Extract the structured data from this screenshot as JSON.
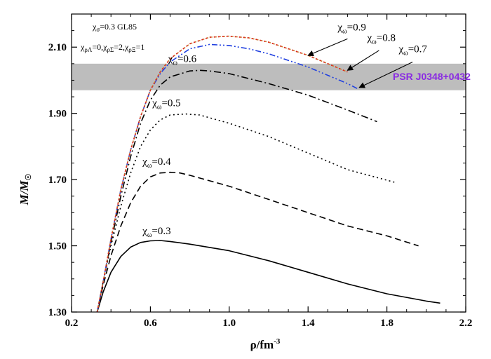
{
  "chart_data": {
    "type": "line",
    "xlabel": "ρ/fm⁻³",
    "ylabel": "M/M☉",
    "xlim": [
      0.2,
      2.2
    ],
    "ylim": [
      1.3,
      2.2
    ],
    "x_ticks": [
      "0.2",
      "0.6",
      "1.0",
      "1.4",
      "1.8",
      "2.2"
    ],
    "y_ticks": [
      "1.30",
      "1.50",
      "1.70",
      "1.90",
      "2.10"
    ],
    "parameters": {
      "line1": "χσ=0.3 GL85",
      "line2": "χρΛ=0,χρΣ=2,χρΞ=1"
    },
    "band": {
      "label": "PSR J0348+0432",
      "ymin": 1.97,
      "ymax": 2.05,
      "color": "#bdbdbd"
    },
    "series": [
      {
        "name": "χω=0.3",
        "color": "#000000",
        "style": "solid",
        "x": [
          0.33,
          0.36,
          0.4,
          0.45,
          0.5,
          0.55,
          0.6,
          0.65,
          0.7,
          0.8,
          1.0,
          1.2,
          1.4,
          1.6,
          1.8,
          2.0,
          2.07
        ],
        "y": [
          1.3,
          1.36,
          1.42,
          1.468,
          1.496,
          1.51,
          1.515,
          1.516,
          1.513,
          1.505,
          1.485,
          1.455,
          1.42,
          1.385,
          1.355,
          1.333,
          1.327
        ]
      },
      {
        "name": "χω=0.4",
        "color": "#000000",
        "style": "dashed",
        "x": [
          0.33,
          0.36,
          0.4,
          0.45,
          0.5,
          0.55,
          0.6,
          0.65,
          0.7,
          0.75,
          0.8,
          1.0,
          1.2,
          1.4,
          1.6,
          1.8,
          1.96
        ],
        "y": [
          1.3,
          1.38,
          1.47,
          1.56,
          1.63,
          1.68,
          1.708,
          1.72,
          1.722,
          1.72,
          1.713,
          1.68,
          1.64,
          1.6,
          1.56,
          1.53,
          1.5
        ]
      },
      {
        "name": "χω=0.5",
        "color": "#000000",
        "style": "dotted",
        "x": [
          0.33,
          0.36,
          0.4,
          0.45,
          0.5,
          0.55,
          0.6,
          0.65,
          0.7,
          0.78,
          0.85,
          1.0,
          1.2,
          1.4,
          1.6,
          1.85
        ],
        "y": [
          1.3,
          1.39,
          1.5,
          1.62,
          1.72,
          1.8,
          1.85,
          1.88,
          1.895,
          1.898,
          1.895,
          1.87,
          1.83,
          1.78,
          1.73,
          1.69
        ]
      },
      {
        "name": "χω=0.6",
        "color": "#000000",
        "style": "dashdot",
        "x": [
          0.33,
          0.36,
          0.4,
          0.45,
          0.5,
          0.55,
          0.6,
          0.65,
          0.7,
          0.8,
          0.85,
          0.9,
          1.0,
          1.2,
          1.4,
          1.6,
          1.75
        ],
        "y": [
          1.3,
          1.39,
          1.51,
          1.65,
          1.77,
          1.87,
          1.94,
          1.985,
          2.01,
          2.028,
          2.03,
          2.028,
          2.02,
          1.99,
          1.955,
          1.91,
          1.875
        ]
      },
      {
        "name": "χω=0.7",
        "color": "#1f3fe0",
        "style": "dashdotdot",
        "x": [
          0.33,
          0.36,
          0.4,
          0.45,
          0.5,
          0.55,
          0.6,
          0.65,
          0.7,
          0.8,
          0.9,
          1.0,
          1.1,
          1.2,
          1.4,
          1.6,
          1.65
        ],
        "y": [
          1.3,
          1.39,
          1.52,
          1.67,
          1.79,
          1.89,
          1.97,
          2.02,
          2.055,
          2.095,
          2.108,
          2.105,
          2.095,
          2.08,
          2.04,
          1.99,
          1.975
        ]
      },
      {
        "name": "χω=0.8",
        "color": "#c87a2b",
        "style": "dashed-short",
        "x": [
          0.33,
          0.36,
          0.4,
          0.45,
          0.5,
          0.55,
          0.6,
          0.65,
          0.7,
          0.8,
          0.9,
          1.0,
          1.1,
          1.2,
          1.4,
          1.6
        ],
        "y": [
          1.3,
          1.39,
          1.52,
          1.67,
          1.79,
          1.89,
          1.97,
          2.025,
          2.065,
          2.11,
          2.13,
          2.133,
          2.128,
          2.115,
          2.075,
          2.025
        ]
      },
      {
        "name": "χω=0.9",
        "color": "#e02020",
        "style": "dotted",
        "x": [
          0.33,
          0.36,
          0.4,
          0.45,
          0.5,
          0.55,
          0.6,
          0.65,
          0.7,
          0.8,
          0.9,
          1.0,
          1.1,
          1.2,
          1.4,
          1.6
        ],
        "y": [
          1.3,
          1.39,
          1.52,
          1.67,
          1.79,
          1.89,
          1.97,
          2.025,
          2.065,
          2.11,
          2.13,
          2.133,
          2.128,
          2.115,
          2.075,
          2.025
        ]
      }
    ],
    "curve_labels": [
      {
        "sub": "ω",
        "value": "=0.3",
        "x": 0.56,
        "y": 1.535
      },
      {
        "sub": "ω",
        "value": "=0.4",
        "x": 0.56,
        "y": 1.745
      },
      {
        "sub": "ω",
        "value": "=0.5",
        "x": 0.61,
        "y": 1.922
      },
      {
        "sub": "ω",
        "value": "=0.6",
        "x": 0.69,
        "y": 2.055
      },
      {
        "sub": "ω",
        "value": "=0.9",
        "x": 1.55,
        "y": 2.15
      },
      {
        "sub": "ω",
        "value": "=0.8",
        "x": 1.7,
        "y": 2.118
      },
      {
        "sub": "ω",
        "value": "=0.7",
        "x": 1.86,
        "y": 2.085
      }
    ],
    "arrows": [
      {
        "from": [
          1.6,
          2.125
        ],
        "to": [
          1.4,
          2.075
        ]
      },
      {
        "from": [
          1.76,
          2.09
        ],
        "to": [
          1.6,
          2.03
        ]
      },
      {
        "from": [
          1.93,
          2.055
        ],
        "to": [
          1.66,
          1.978
        ]
      }
    ]
  }
}
